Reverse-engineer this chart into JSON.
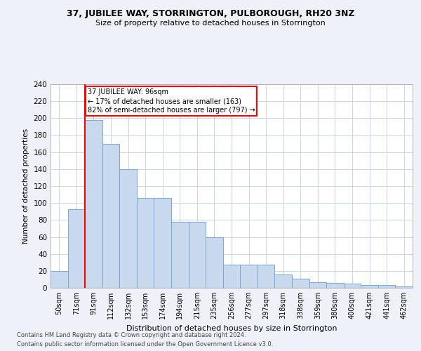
{
  "title1": "37, JUBILEE WAY, STORRINGTON, PULBOROUGH, RH20 3NZ",
  "title2": "Size of property relative to detached houses in Storrington",
  "xlabel": "Distribution of detached houses by size in Storrington",
  "ylabel": "Number of detached properties",
  "categories": [
    "50sqm",
    "71sqm",
    "91sqm",
    "112sqm",
    "132sqm",
    "153sqm",
    "174sqm",
    "194sqm",
    "215sqm",
    "235sqm",
    "256sqm",
    "277sqm",
    "297sqm",
    "318sqm",
    "338sqm",
    "359sqm",
    "380sqm",
    "400sqm",
    "421sqm",
    "441sqm",
    "462sqm"
  ],
  "values": [
    20,
    93,
    198,
    170,
    140,
    106,
    106,
    78,
    78,
    60,
    27,
    27,
    27,
    16,
    11,
    7,
    6,
    5,
    3,
    3,
    2
  ],
  "bar_color": "#c9d9ed",
  "bar_edge_color": "#7aa8d2",
  "red_line_index": 2,
  "annotation_title": "37 JUBILEE WAY: 96sqm",
  "annotation_line1": "← 17% of detached houses are smaller (163)",
  "annotation_line2": "82% of semi-detached houses are larger (797) →",
  "footnote1": "Contains HM Land Registry data © Crown copyright and database right 2024.",
  "footnote2": "Contains public sector information licensed under the Open Government Licence v3.0.",
  "bg_color": "#eef2f8",
  "plot_bg_color": "#ffffff",
  "grid_color": "#c8d4e8",
  "ylim": [
    0,
    240
  ],
  "yticks": [
    0,
    20,
    40,
    60,
    80,
    100,
    120,
    140,
    160,
    180,
    200,
    220,
    240
  ]
}
